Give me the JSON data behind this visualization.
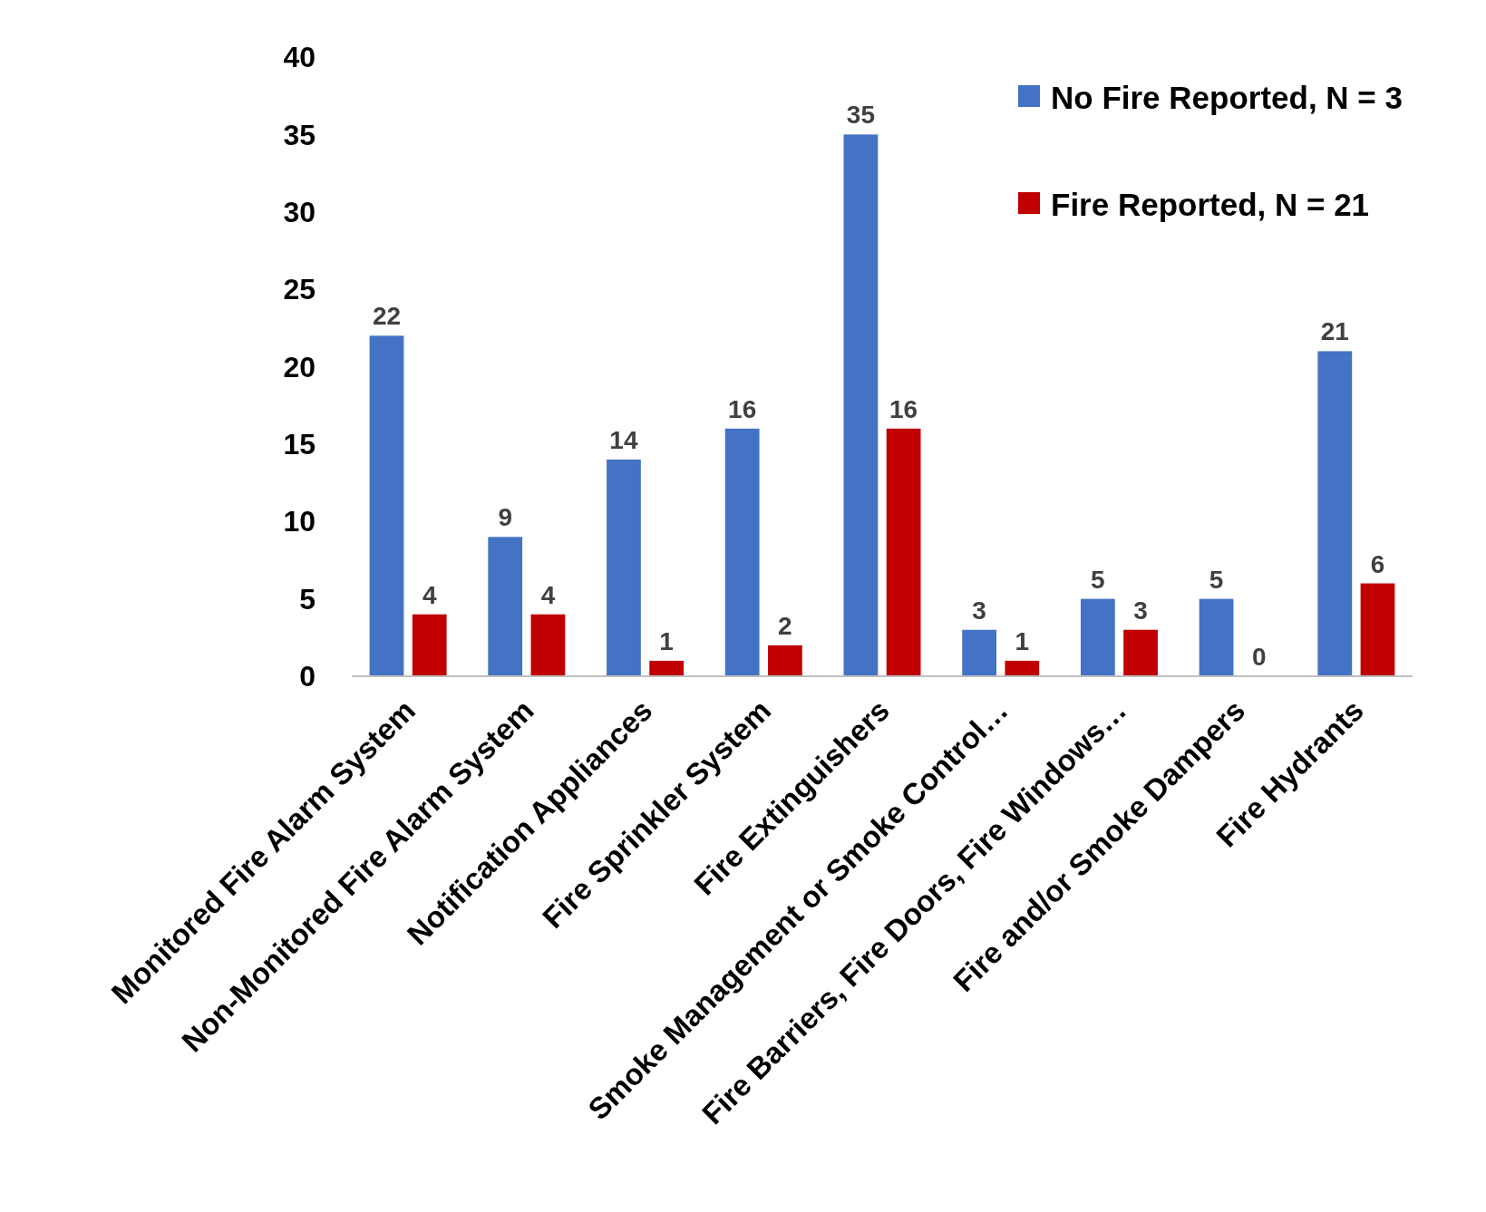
{
  "chart_data": {
    "type": "bar",
    "categories": [
      "Monitored Fire Alarm System",
      "Non-Monitored Fire Alarm System",
      "Notification Appliances",
      "Fire Sprinkler System",
      "Fire Extinguishers",
      "Smoke Management or Smoke Control…",
      "Fire Barriers, Fire Doors, Fire Windows…",
      "Fire and/or Smoke Dampers",
      "Fire Hydrants"
    ],
    "series": [
      {
        "name": "No Fire Reported, N = 3",
        "color": "#4472c4",
        "values": [
          22,
          9,
          14,
          16,
          35,
          3,
          5,
          5,
          21
        ]
      },
      {
        "name": "Fire Reported, N = 21",
        "color": "#c00000",
        "values": [
          4,
          4,
          1,
          2,
          16,
          1,
          3,
          0,
          6
        ]
      }
    ],
    "ylim": [
      0,
      40
    ],
    "yticks": [
      0,
      5,
      10,
      15,
      20,
      25,
      30,
      35,
      40
    ],
    "data_labels": true,
    "legend": "top right",
    "grid": false
  }
}
